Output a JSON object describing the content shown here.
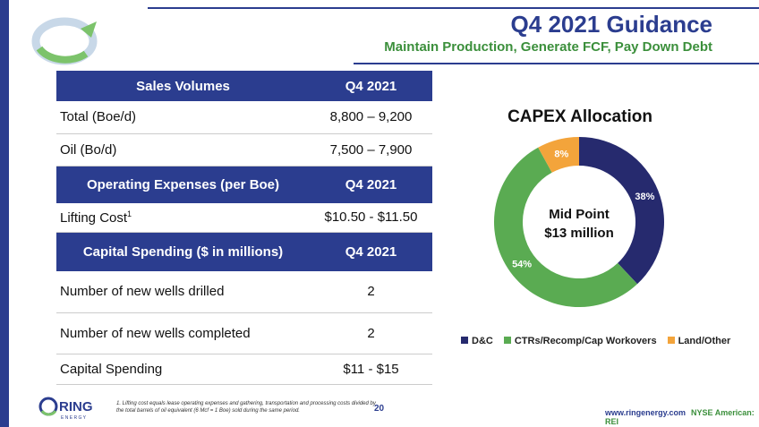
{
  "header": {
    "title": "Q4 2021 Guidance",
    "subtitle": "Maintain Production, Generate FCF, Pay Down Debt"
  },
  "table": {
    "sections": [
      {
        "header": [
          "Sales Volumes",
          "Q4 2021"
        ],
        "rows": [
          [
            "Total (Boe/d)",
            "8,800 – 9,200"
          ],
          [
            "Oil (Bo/d)",
            "7,500 – 7,900"
          ]
        ]
      },
      {
        "header": [
          "Operating Expenses (per Boe)",
          "Q4 2021"
        ],
        "rows": [
          [
            "Lifting Cost",
            "$10.50 - $11.50"
          ]
        ]
      },
      {
        "header": [
          "Capital Spending ($ in millions)",
          "Q4 2021"
        ],
        "rows": [
          [
            "Number of new wells drilled",
            "2"
          ],
          [
            "Number of new wells completed",
            "2"
          ],
          [
            "Capital Spending",
            "$11 - $15"
          ]
        ]
      }
    ],
    "lifting_sup": "1"
  },
  "chart_data": {
    "type": "pie",
    "title": "CAPEX Allocation",
    "center_label": [
      "Mid Point",
      "$13 million"
    ],
    "series": [
      {
        "name": "D&C",
        "value": 38,
        "label": "38%",
        "color": "#262a6e"
      },
      {
        "name": "CTRs/Recomp/Cap Workovers",
        "value": 54,
        "label": "54%",
        "color": "#5aab52"
      },
      {
        "name": "Land/Other",
        "value": 8,
        "label": "8%",
        "color": "#f3a43b"
      }
    ]
  },
  "footer": {
    "logo_text": "RING",
    "logo_sub": "E N E R G Y",
    "footnote": "1. Lifting cost equals lease operating expenses and gathering, transportation and processing costs divided by the total barrels of oil equivalent (6 Mcf = 1 Boe) sold during the same period.",
    "page": "20",
    "site": "www.ringenergy.com",
    "nyse": "NYSE American: REI"
  }
}
